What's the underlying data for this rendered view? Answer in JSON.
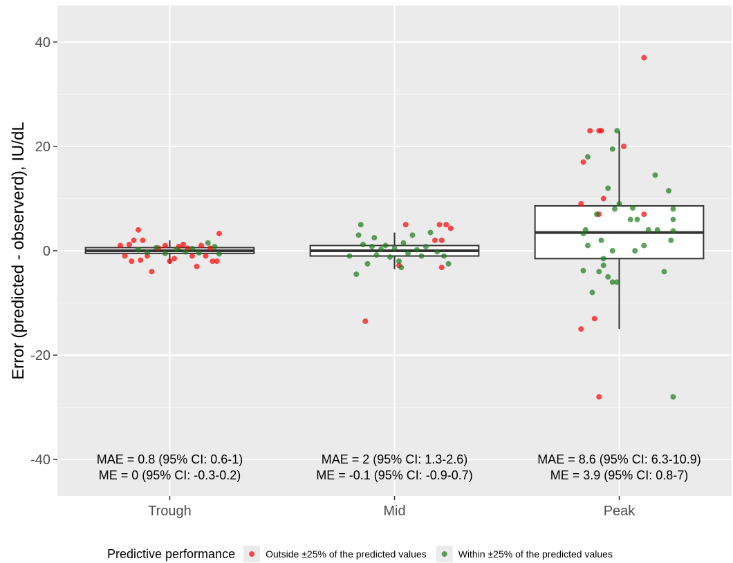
{
  "chart_data": {
    "type": "boxplot",
    "xlabel": "",
    "ylabel": "Error (predicted - observerd), IU/dL",
    "ylim": [
      -47,
      47
    ],
    "y_ticks": [
      -40,
      -20,
      0,
      20,
      40
    ],
    "y_tick_labels": [
      "-40",
      "-20",
      "0",
      "20",
      "40"
    ],
    "categories": [
      "Trough",
      "Mid",
      "Peak"
    ],
    "grid": true,
    "legend": {
      "position": "bottom",
      "title": "Predictive performance",
      "entries": [
        {
          "label": "Outside ±25% of the predicted values",
          "color": "#ff0000"
        },
        {
          "label": "Within ±25% of the predicted values",
          "color": "#1a7a1a"
        }
      ]
    },
    "boxes": [
      {
        "category": "Trough",
        "q1": -0.5,
        "median": 0.0,
        "q3": 0.6,
        "whisker_low": -2.5,
        "whisker_high": 2.0
      },
      {
        "category": "Mid",
        "q1": -1.0,
        "median": 0.0,
        "q3": 1.0,
        "whisker_low": -3.5,
        "whisker_high": 3.5
      },
      {
        "category": "Peak",
        "q1": -1.5,
        "median": 3.5,
        "q3": 8.6,
        "whisker_low": -15.0,
        "whisker_high": 23.0
      }
    ],
    "annotations": [
      {
        "category": "Trough",
        "line1": "MAE = 0.8 (95% CI: 0.6-1)",
        "line2": "ME = 0 (95% CI: -0.3-0.2)"
      },
      {
        "category": "Mid",
        "line1": "MAE = 2 (95% CI: 1.3-2.6)",
        "line2": "ME = -0.1 (95% CI: -0.9-0.7)"
      },
      {
        "category": "Peak",
        "line1": "MAE = 8.6 (95% CI: 6.3-10.9)",
        "line2": "ME = 3.9 (95% CI: 0.8-7)"
      }
    ],
    "series": [
      {
        "name": "Outside ±25% of the predicted values",
        "color": "#ff0000",
        "points": [
          {
            "category": "Trough",
            "offset": -0.22,
            "y": 1.0
          },
          {
            "category": "Trough",
            "offset": -0.18,
            "y": 1.2
          },
          {
            "category": "Trough",
            "offset": -0.16,
            "y": 2.0
          },
          {
            "category": "Trough",
            "offset": -0.14,
            "y": 4.0
          },
          {
            "category": "Trough",
            "offset": -0.12,
            "y": 2.0
          },
          {
            "category": "Trough",
            "offset": -0.17,
            "y": -2.0
          },
          {
            "category": "Trough",
            "offset": -0.13,
            "y": -1.8
          },
          {
            "category": "Trough",
            "offset": -0.2,
            "y": -1.0
          },
          {
            "category": "Trough",
            "offset": -0.1,
            "y": -1.0
          },
          {
            "category": "Trough",
            "offset": -0.08,
            "y": -4.0
          },
          {
            "category": "Trough",
            "offset": -0.05,
            "y": 0.5
          },
          {
            "category": "Trough",
            "offset": -0.02,
            "y": 1.0
          },
          {
            "category": "Trough",
            "offset": 0.0,
            "y": -2.0
          },
          {
            "category": "Trough",
            "offset": 0.02,
            "y": -1.5
          },
          {
            "category": "Trough",
            "offset": 0.04,
            "y": 0.8
          },
          {
            "category": "Trough",
            "offset": 0.06,
            "y": 1.2
          },
          {
            "category": "Trough",
            "offset": 0.08,
            "y": 0.5
          },
          {
            "category": "Trough",
            "offset": 0.1,
            "y": -1.0
          },
          {
            "category": "Trough",
            "offset": 0.12,
            "y": -3.0
          },
          {
            "category": "Trough",
            "offset": 0.14,
            "y": 1.0
          },
          {
            "category": "Trough",
            "offset": 0.16,
            "y": -1.0
          },
          {
            "category": "Trough",
            "offset": 0.19,
            "y": -2.0
          },
          {
            "category": "Trough",
            "offset": 0.21,
            "y": -2.0
          },
          {
            "category": "Trough",
            "offset": 0.22,
            "y": 3.3
          },
          {
            "category": "Trough",
            "offset": 0.18,
            "y": 0.5
          },
          {
            "category": "Mid",
            "offset": -0.13,
            "y": -13.5
          },
          {
            "category": "Mid",
            "offset": 0.05,
            "y": 5.0
          },
          {
            "category": "Mid",
            "offset": 0.2,
            "y": 5.0
          },
          {
            "category": "Mid",
            "offset": 0.23,
            "y": 5.0
          },
          {
            "category": "Mid",
            "offset": 0.25,
            "y": 4.3
          },
          {
            "category": "Mid",
            "offset": 0.18,
            "y": 2.0
          },
          {
            "category": "Mid",
            "offset": 0.21,
            "y": 2.0
          },
          {
            "category": "Mid",
            "offset": 0.21,
            "y": -3.2
          },
          {
            "category": "Mid",
            "offset": 0.02,
            "y": -2.8
          },
          {
            "category": "Peak",
            "offset": -0.13,
            "y": 23.0
          },
          {
            "category": "Peak",
            "offset": -0.09,
            "y": 23.0
          },
          {
            "category": "Peak",
            "offset": -0.08,
            "y": 23.0
          },
          {
            "category": "Peak",
            "offset": 0.02,
            "y": 20.0
          },
          {
            "category": "Peak",
            "offset": -0.16,
            "y": 17.0
          },
          {
            "category": "Peak",
            "offset": -0.07,
            "y": 10.0
          },
          {
            "category": "Peak",
            "offset": -0.17,
            "y": 9.0
          },
          {
            "category": "Peak",
            "offset": -0.09,
            "y": 7.0
          },
          {
            "category": "Peak",
            "offset": 0.11,
            "y": 7.0
          },
          {
            "category": "Peak",
            "offset": -0.11,
            "y": -13.0
          },
          {
            "category": "Peak",
            "offset": -0.17,
            "y": -15.0
          },
          {
            "category": "Peak",
            "offset": -0.09,
            "y": -28.0
          },
          {
            "category": "Peak",
            "offset": 0.11,
            "y": 37.0
          }
        ]
      },
      {
        "name": "Within ±25% of the predicted values",
        "color": "#1a7a1a",
        "points": [
          {
            "category": "Trough",
            "offset": -0.14,
            "y": 0.2
          },
          {
            "category": "Trough",
            "offset": -0.1,
            "y": -0.3
          },
          {
            "category": "Trough",
            "offset": -0.06,
            "y": 0.6
          },
          {
            "category": "Trough",
            "offset": -0.02,
            "y": -0.5
          },
          {
            "category": "Trough",
            "offset": 0.03,
            "y": 0.3
          },
          {
            "category": "Trough",
            "offset": 0.07,
            "y": -0.2
          },
          {
            "category": "Trough",
            "offset": 0.1,
            "y": 0.4
          },
          {
            "category": "Trough",
            "offset": 0.13,
            "y": -0.4
          },
          {
            "category": "Trough",
            "offset": 0.17,
            "y": 1.5
          },
          {
            "category": "Trough",
            "offset": 0.2,
            "y": 0.8
          },
          {
            "category": "Trough",
            "offset": 0.22,
            "y": -0.6
          },
          {
            "category": "Mid",
            "offset": -0.17,
            "y": -4.5
          },
          {
            "category": "Mid",
            "offset": -0.2,
            "y": -1.0
          },
          {
            "category": "Mid",
            "offset": -0.16,
            "y": 3.0
          },
          {
            "category": "Mid",
            "offset": -0.15,
            "y": 5.0
          },
          {
            "category": "Mid",
            "offset": -0.14,
            "y": 1.2
          },
          {
            "category": "Mid",
            "offset": -0.12,
            "y": -2.5
          },
          {
            "category": "Mid",
            "offset": -0.1,
            "y": 0.8
          },
          {
            "category": "Mid",
            "offset": -0.08,
            "y": -0.8
          },
          {
            "category": "Mid",
            "offset": -0.06,
            "y": 0.3
          },
          {
            "category": "Mid",
            "offset": -0.04,
            "y": 1.0
          },
          {
            "category": "Mid",
            "offset": -0.02,
            "y": -1.2
          },
          {
            "category": "Mid",
            "offset": 0.0,
            "y": 0.5
          },
          {
            "category": "Mid",
            "offset": 0.02,
            "y": -2.0
          },
          {
            "category": "Mid",
            "offset": 0.04,
            "y": 1.5
          },
          {
            "category": "Mid",
            "offset": 0.06,
            "y": -0.5
          },
          {
            "category": "Mid",
            "offset": 0.08,
            "y": 3.0
          },
          {
            "category": "Mid",
            "offset": 0.1,
            "y": 0.2
          },
          {
            "category": "Mid",
            "offset": 0.12,
            "y": -1.0
          },
          {
            "category": "Mid",
            "offset": 0.14,
            "y": 0.8
          },
          {
            "category": "Mid",
            "offset": 0.16,
            "y": 3.5
          },
          {
            "category": "Mid",
            "offset": 0.19,
            "y": -0.2
          },
          {
            "category": "Mid",
            "offset": 0.22,
            "y": -1.0
          },
          {
            "category": "Mid",
            "offset": 0.24,
            "y": -2.5
          },
          {
            "category": "Mid",
            "offset": 0.03,
            "y": -3.2
          },
          {
            "category": "Mid",
            "offset": -0.09,
            "y": 2.5
          },
          {
            "category": "Peak",
            "offset": -0.01,
            "y": 23.0
          },
          {
            "category": "Peak",
            "offset": -0.03,
            "y": 19.5
          },
          {
            "category": "Peak",
            "offset": -0.14,
            "y": 18.0
          },
          {
            "category": "Peak",
            "offset": 0.16,
            "y": 14.5
          },
          {
            "category": "Peak",
            "offset": -0.05,
            "y": 12.0
          },
          {
            "category": "Peak",
            "offset": 0.22,
            "y": 11.5
          },
          {
            "category": "Peak",
            "offset": 0.0,
            "y": 9.0
          },
          {
            "category": "Peak",
            "offset": -0.02,
            "y": 8.0
          },
          {
            "category": "Peak",
            "offset": 0.06,
            "y": 8.2
          },
          {
            "category": "Peak",
            "offset": 0.24,
            "y": 8.0
          },
          {
            "category": "Peak",
            "offset": -0.1,
            "y": 7.0
          },
          {
            "category": "Peak",
            "offset": 0.05,
            "y": 6.0
          },
          {
            "category": "Peak",
            "offset": 0.08,
            "y": 6.0
          },
          {
            "category": "Peak",
            "offset": 0.24,
            "y": 6.0
          },
          {
            "category": "Peak",
            "offset": -0.15,
            "y": 4.0
          },
          {
            "category": "Peak",
            "offset": 0.13,
            "y": 4.0
          },
          {
            "category": "Peak",
            "offset": 0.17,
            "y": 4.0
          },
          {
            "category": "Peak",
            "offset": 0.24,
            "y": 3.8
          },
          {
            "category": "Peak",
            "offset": -0.16,
            "y": 3.3
          },
          {
            "category": "Peak",
            "offset": -0.08,
            "y": 2.0
          },
          {
            "category": "Peak",
            "offset": 0.23,
            "y": 2.0
          },
          {
            "category": "Peak",
            "offset": -0.14,
            "y": 1.0
          },
          {
            "category": "Peak",
            "offset": 0.11,
            "y": 1.0
          },
          {
            "category": "Peak",
            "offset": -0.03,
            "y": 0.0
          },
          {
            "category": "Peak",
            "offset": 0.07,
            "y": 0.0
          },
          {
            "category": "Peak",
            "offset": -0.07,
            "y": -1.5
          },
          {
            "category": "Peak",
            "offset": -0.07,
            "y": -2.8
          },
          {
            "category": "Peak",
            "offset": -0.16,
            "y": -3.8
          },
          {
            "category": "Peak",
            "offset": -0.09,
            "y": -4.0
          },
          {
            "category": "Peak",
            "offset": 0.2,
            "y": -4.0
          },
          {
            "category": "Peak",
            "offset": -0.05,
            "y": -5.0
          },
          {
            "category": "Peak",
            "offset": -0.03,
            "y": -6.0
          },
          {
            "category": "Peak",
            "offset": -0.01,
            "y": -6.0
          },
          {
            "category": "Peak",
            "offset": -0.12,
            "y": -8.0
          },
          {
            "category": "Peak",
            "offset": 0.24,
            "y": -28.0
          }
        ]
      }
    ]
  }
}
